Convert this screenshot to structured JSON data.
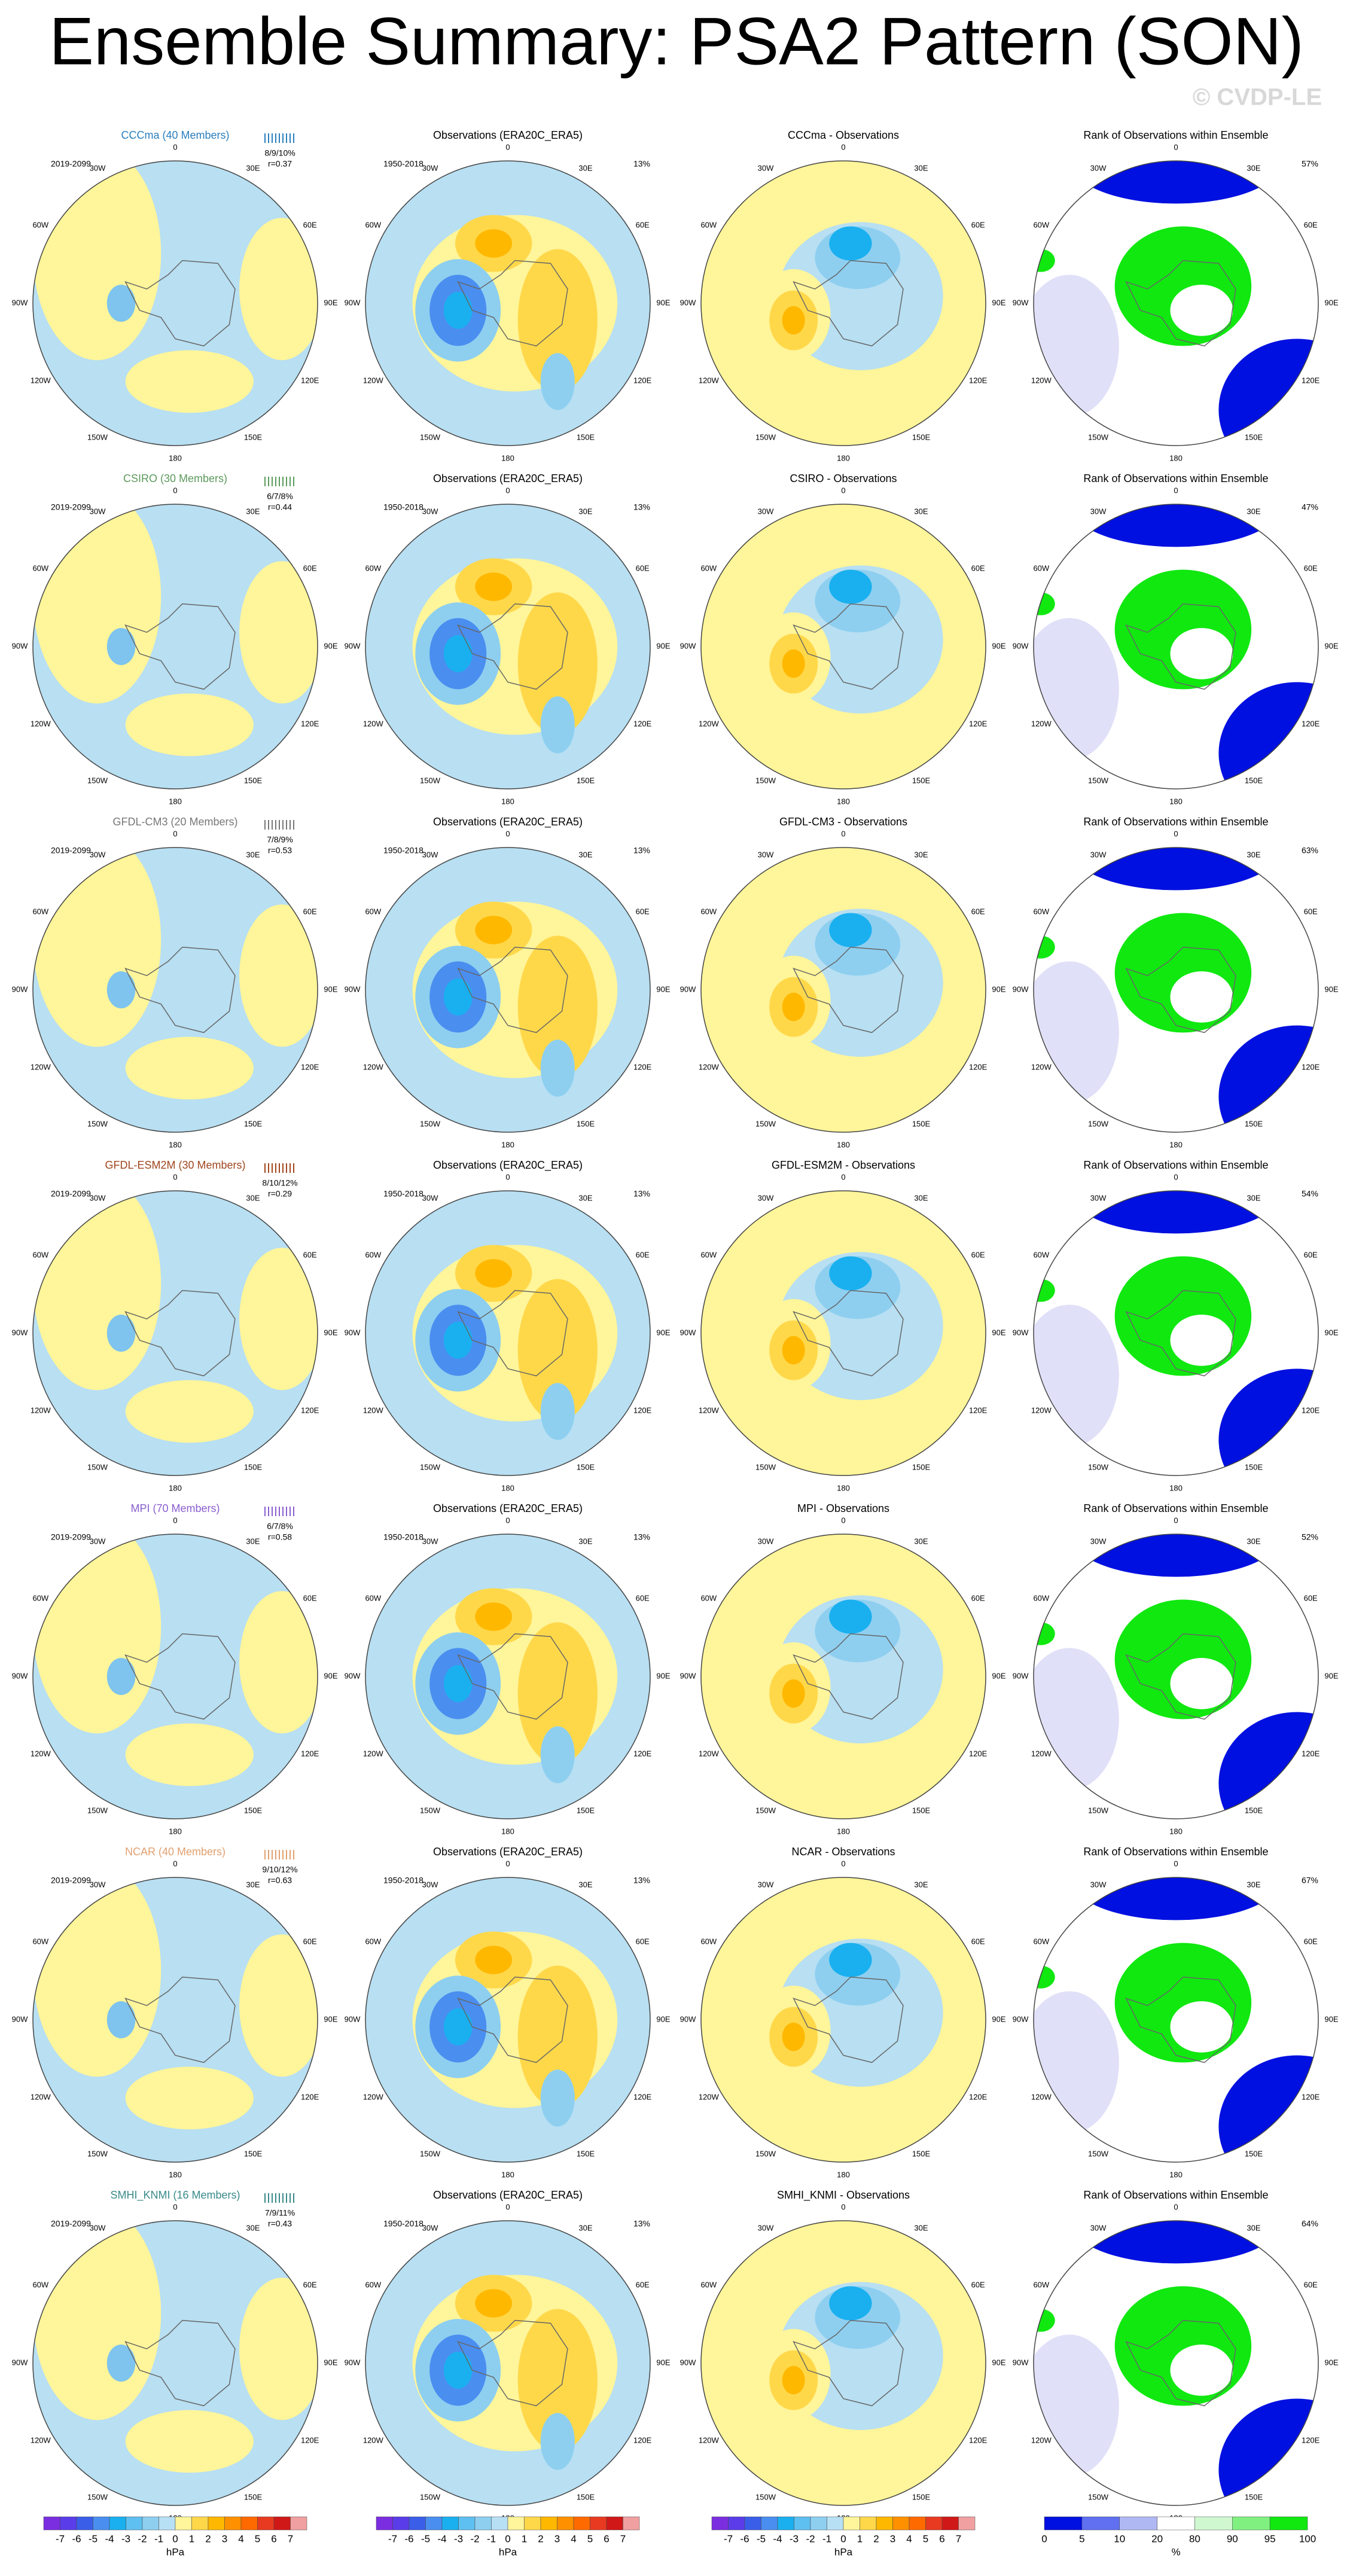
{
  "title": "Ensemble Summary: PSA2 Pattern (SON)",
  "watermark": "© CVDP-LE",
  "longitude_labels": [
    "0",
    "30E",
    "60E",
    "90E",
    "120E",
    "150E",
    "180",
    "150W",
    "120W",
    "90W",
    "60W",
    "30W"
  ],
  "rows": [
    {
      "model": "CCCma (40 Members)",
      "model_color": "#2a7fbd",
      "years": "2019-2099",
      "stats": "8/9/10%",
      "r": "r=0.37",
      "obs_title": "Observations (ERA20C_ERA5)",
      "obs_years": "1950-2018",
      "obs_pct": "13%",
      "diff_title": "CCCma - Observations",
      "rank_title": "Rank of Observations within Ensemble",
      "rank_pct": "57%"
    },
    {
      "model": "CSIRO (30 Members)",
      "model_color": "#5c9a5c",
      "years": "2019-2099",
      "stats": "6/7/8%",
      "r": "r=0.44",
      "obs_title": "Observations (ERA20C_ERA5)",
      "obs_years": "1950-2018",
      "obs_pct": "13%",
      "diff_title": "CSIRO - Observations",
      "rank_title": "Rank of Observations within Ensemble",
      "rank_pct": "47%"
    },
    {
      "model": "GFDL-CM3 (20 Members)",
      "model_color": "#777777",
      "years": "2019-2099",
      "stats": "7/8/9%",
      "r": "r=0.53",
      "obs_title": "Observations (ERA20C_ERA5)",
      "obs_years": "1950-2018",
      "obs_pct": "13%",
      "diff_title": "GFDL-CM3 - Observations",
      "rank_title": "Rank of Observations within Ensemble",
      "rank_pct": "63%"
    },
    {
      "model": "GFDL-ESM2M (30 Members)",
      "model_color": "#a0461e",
      "years": "2019-2099",
      "stats": "8/10/12%",
      "r": "r=0.29",
      "obs_title": "Observations (ERA20C_ERA5)",
      "obs_years": "1950-2018",
      "obs_pct": "13%",
      "diff_title": "GFDL-ESM2M - Observations",
      "rank_title": "Rank of Observations within Ensemble",
      "rank_pct": "54%"
    },
    {
      "model": "MPI (70 Members)",
      "model_color": "#8a5fd0",
      "years": "2019-2099",
      "stats": "6/7/8%",
      "r": "r=0.58",
      "obs_title": "Observations (ERA20C_ERA5)",
      "obs_years": "1950-2018",
      "obs_pct": "13%",
      "diff_title": "MPI - Observations",
      "rank_title": "Rank of Observations within Ensemble",
      "rank_pct": "52%"
    },
    {
      "model": "NCAR (40 Members)",
      "model_color": "#e0a070",
      "years": "2019-2099",
      "stats": "9/10/12%",
      "r": "r=0.63",
      "obs_title": "Observations (ERA20C_ERA5)",
      "obs_years": "1950-2018",
      "obs_pct": "13%",
      "diff_title": "NCAR - Observations",
      "rank_title": "Rank of Observations within Ensemble",
      "rank_pct": "67%"
    },
    {
      "model": "SMHI_KNMI (16 Members)",
      "model_color": "#3a8a8a",
      "years": "2019-2099",
      "stats": "7/9/11%",
      "r": "r=0.43",
      "obs_title": "Observations (ERA20C_ERA5)",
      "obs_years": "1950-2018",
      "obs_pct": "13%",
      "diff_title": "SMHI_KNMI - Observations",
      "rank_title": "Rank of Observations within Ensemble",
      "rank_pct": "64%"
    }
  ],
  "colorbars": {
    "hpa": {
      "labels": [
        "-7",
        "-6",
        "-5",
        "-4",
        "-3",
        "-2",
        "-1",
        "0",
        "1",
        "2",
        "3",
        "4",
        "5",
        "6",
        "7"
      ],
      "unit": "hPa",
      "colors": [
        "#7b2ee0",
        "#5a3de8",
        "#3b5ee8",
        "#4a8ef0",
        "#1ab0f0",
        "#5ec0f0",
        "#8ecff0",
        "#b8e0f5",
        "#fff59a",
        "#ffd84a",
        "#ffb800",
        "#ff9000",
        "#ff6a00",
        "#e83a20",
        "#d01818",
        "#f0a0a0"
      ]
    },
    "rank": {
      "labels": [
        "0",
        "5",
        "10",
        "20",
        "80",
        "90",
        "95",
        "100"
      ],
      "unit": "%",
      "colors": [
        "#0010e0",
        "#6070f0",
        "#b0b8f4",
        "#ffffff",
        "#d0f8d0",
        "#80f080",
        "#10e810"
      ]
    }
  }
}
